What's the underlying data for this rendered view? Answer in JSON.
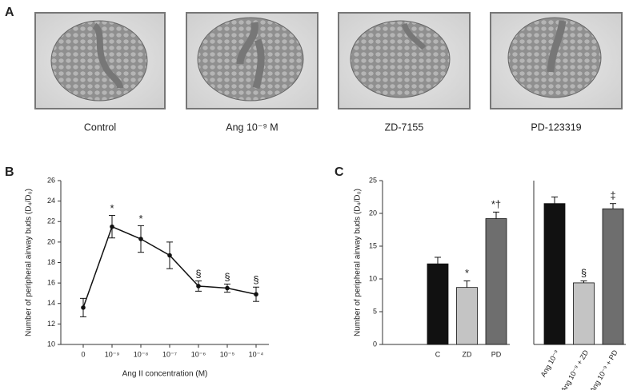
{
  "panel_a": {
    "label": "A",
    "captions": [
      "Control",
      "Ang 10⁻⁹ M",
      "ZD-7155",
      "PD-123319"
    ]
  },
  "chart_data": [
    {
      "type": "line",
      "panel_label": "B",
      "ylabel": "Number of peripheral airway buds (D₄/D₀)",
      "xlabel": "Ang II concentration (M)",
      "categories": [
        "0",
        "10⁻⁹",
        "10⁻⁸",
        "10⁻⁷",
        "10⁻⁶",
        "10⁻⁵",
        "10⁻⁴"
      ],
      "values": [
        13.6,
        21.5,
        20.3,
        18.7,
        15.7,
        15.5,
        14.9
      ],
      "errors": [
        0.9,
        1.1,
        1.3,
        1.3,
        0.5,
        0.4,
        0.7
      ],
      "markers": [
        null,
        "*",
        "*",
        null,
        "§",
        "§",
        "§"
      ],
      "color": "#111111",
      "ylim": [
        10,
        26
      ],
      "yticks": [
        10,
        12,
        14,
        16,
        18,
        20,
        22,
        24,
        26
      ]
    },
    {
      "type": "bar",
      "panel_label": "C",
      "ylabel": "Number of peripheral airway buds (D₄/D₀)",
      "ylim": [
        0,
        25
      ],
      "yticks": [
        0,
        5,
        10,
        15,
        20,
        25
      ],
      "groups": [
        {
          "categories": [
            "C",
            "ZD",
            "PD"
          ],
          "values": [
            12.3,
            8.7,
            19.2
          ],
          "errors": [
            1.0,
            1.0,
            1.0
          ],
          "colors": [
            "#111111",
            "#c4c4c4",
            "#6e6e6e"
          ],
          "markers": [
            null,
            "*",
            "*†"
          ],
          "rotated_labels": false
        },
        {
          "categories": [
            "Ang 10⁻⁹",
            "Ang 10⁻⁹ + ZD",
            "Ang 10⁻⁹ + PD"
          ],
          "values": [
            21.5,
            9.4,
            20.7
          ],
          "errors": [
            1.0,
            0.3,
            0.8
          ],
          "colors": [
            "#111111",
            "#c4c4c4",
            "#6e6e6e"
          ],
          "markers": [
            null,
            "§",
            "‡"
          ],
          "rotated_labels": true
        }
      ]
    }
  ]
}
